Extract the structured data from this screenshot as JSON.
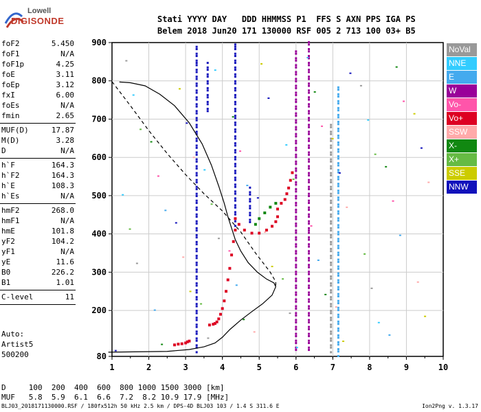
{
  "logo": {
    "top": "Lowell",
    "bottom": "DIGISONDE"
  },
  "header": {
    "line1": "Stati YYYY DAY   DDD HHMMSS P1  FFS S AXN PPS IGA PS",
    "line2": "Belem 2018 Jun20 171 130000 RSF 005 2 713 100 03+ B5"
  },
  "params": {
    "group1": [
      {
        "label": "foF2",
        "value": "5.450"
      },
      {
        "label": "foF1",
        "value": "N/A"
      },
      {
        "label": "foF1p",
        "value": "4.25"
      },
      {
        "label": "foE",
        "value": "3.11"
      },
      {
        "label": "foEp",
        "value": "3.12"
      },
      {
        "label": "fxI",
        "value": "6.00"
      },
      {
        "label": "foEs",
        "value": "N/A"
      },
      {
        "label": "fmin",
        "value": "2.65"
      }
    ],
    "group2": [
      {
        "label": "MUF(D)",
        "value": "17.87"
      },
      {
        "label": "M(D)",
        "value": "3.28"
      },
      {
        "label": "D",
        "value": "N/A"
      }
    ],
    "group3": [
      {
        "label": "h`F",
        "value": "164.3"
      },
      {
        "label": "h`F2",
        "value": "164.3"
      },
      {
        "label": "h`E",
        "value": "108.3"
      },
      {
        "label": "h`Es",
        "value": "N/A"
      }
    ],
    "group4": [
      {
        "label": "hmF2",
        "value": "268.0"
      },
      {
        "label": "hmF1",
        "value": "N/A"
      },
      {
        "label": "hmE",
        "value": "101.8"
      },
      {
        "label": "yF2",
        "value": "104.2"
      },
      {
        "label": "yF1",
        "value": "N/A"
      },
      {
        "label": "yE",
        "value": "11.6"
      },
      {
        "label": "B0",
        "value": "226.2"
      },
      {
        "label": "B1",
        "value": "1.01"
      }
    ],
    "group5": [
      {
        "label": "C-level",
        "value": "11"
      }
    ]
  },
  "autoscale": {
    "line1": "Auto:",
    "line2": "Artist5",
    "line3": "500200"
  },
  "muf_table": {
    "line1": "D     100  200  400  600  800 1000 1500 3000 [km]",
    "line2": "MUF   5.8  5.9  6.1  6.6  7.2  8.2 10.9 17.9 [MHz]"
  },
  "footer": {
    "left": "BLJ03_2018171130000.RSF / 180fx512h 50 kHz 2.5 km / DPS-4D BLJ03 103 / 1.4 S 311.6 E",
    "right": "Ion2Png v. 1.3.17"
  },
  "legend": [
    {
      "label": "NoVal",
      "color": "#999999"
    },
    {
      "label": "NNE",
      "color": "#33ccff"
    },
    {
      "label": "E",
      "color": "#44aaee"
    },
    {
      "label": "W",
      "color": "#990099"
    },
    {
      "label": "Vo-",
      "color": "#ff55aa"
    },
    {
      "label": "Vo+",
      "color": "#dd0022"
    },
    {
      "label": "SSW",
      "color": "#ffaaaa"
    },
    {
      "label": "X-",
      "color": "#118811"
    },
    {
      "label": "X+",
      "color": "#66bb44"
    },
    {
      "label": "SSE",
      "color": "#cccc00"
    },
    {
      "label": "NNW",
      "color": "#1111bb"
    }
  ],
  "chart_data": {
    "type": "scatter",
    "xlabel": "",
    "ylabel": "",
    "xlim": [
      1,
      10
    ],
    "ylim": [
      80,
      900
    ],
    "xticks": [
      1,
      2,
      3,
      4,
      5,
      6,
      7,
      8,
      9,
      10
    ],
    "yticks": [
      80,
      200,
      300,
      400,
      500,
      600,
      700,
      800,
      900
    ],
    "grid": true,
    "profile_solid": [
      [
        0.9,
        91
      ],
      [
        2.5,
        93
      ],
      [
        3.1,
        98
      ],
      [
        3.5,
        105
      ],
      [
        3.8,
        115
      ],
      [
        4.0,
        130
      ],
      [
        4.2,
        150
      ],
      [
        4.5,
        175
      ],
      [
        4.8,
        197
      ],
      [
        5.1,
        218
      ],
      [
        5.35,
        240
      ],
      [
        5.45,
        262
      ],
      [
        5.4,
        272
      ],
      [
        5.2,
        282
      ],
      [
        4.95,
        300
      ],
      [
        4.7,
        325
      ],
      [
        4.5,
        355
      ],
      [
        4.35,
        385
      ],
      [
        4.25,
        415
      ],
      [
        4.15,
        445
      ],
      [
        4.05,
        480
      ],
      [
        3.9,
        525
      ],
      [
        3.7,
        580
      ],
      [
        3.45,
        635
      ],
      [
        3.1,
        690
      ],
      [
        2.7,
        735
      ],
      [
        2.3,
        765
      ],
      [
        1.9,
        787
      ],
      [
        1.5,
        795
      ],
      [
        1.2,
        797
      ]
    ],
    "profile_dashed": [
      [
        1.0,
        798
      ],
      [
        1.5,
        735
      ],
      [
        2.0,
        670
      ],
      [
        2.5,
        610
      ],
      [
        3.0,
        555
      ],
      [
        3.5,
        505
      ],
      [
        4.0,
        460
      ],
      [
        4.5,
        405
      ],
      [
        4.9,
        350
      ],
      [
        5.3,
        300
      ],
      [
        5.45,
        275
      ],
      [
        5.45,
        262
      ]
    ],
    "trace_extraordinary_low": [
      [
        3.65,
        162
      ],
      [
        3.75,
        164
      ],
      [
        3.8,
        166
      ],
      [
        3.85,
        170
      ],
      [
        3.9,
        178
      ],
      [
        3.95,
        190
      ],
      [
        4.0,
        205
      ],
      [
        4.05,
        225
      ],
      [
        4.1,
        250
      ],
      [
        4.15,
        280
      ],
      [
        4.2,
        310
      ],
      [
        4.25,
        345
      ],
      [
        4.3,
        380
      ],
      [
        4.35,
        410
      ]
    ],
    "trace_o_lower": [
      [
        2.7,
        110
      ],
      [
        2.8,
        112
      ],
      [
        2.9,
        113
      ],
      [
        3.0,
        115
      ],
      [
        3.05,
        118
      ],
      [
        3.1,
        120
      ]
    ],
    "trace_o_F": [
      [
        4.35,
        440
      ],
      [
        4.45,
        425
      ],
      [
        4.6,
        410
      ],
      [
        4.8,
        402
      ],
      [
        5.0,
        402
      ],
      [
        5.2,
        410
      ],
      [
        5.35,
        420
      ],
      [
        5.45,
        432
      ],
      [
        5.5,
        445
      ]
    ],
    "trace_o_high": [
      [
        5.5,
        465
      ],
      [
        5.6,
        480
      ],
      [
        5.7,
        490
      ],
      [
        5.75,
        505
      ],
      [
        5.8,
        520
      ],
      [
        5.85,
        540
      ],
      [
        5.9,
        560
      ]
    ],
    "trace_x_F": [
      [
        4.9,
        425
      ],
      [
        5.0,
        440
      ],
      [
        5.15,
        455
      ],
      [
        5.3,
        470
      ],
      [
        5.45,
        480
      ]
    ],
    "vertical_bands": [
      {
        "x": 3.3,
        "ymin": 90,
        "ymax": 890,
        "series": "NNW"
      },
      {
        "x": 3.6,
        "ymin": 720,
        "ymax": 850,
        "series": "NNW"
      },
      {
        "x": 4.35,
        "ymin": 420,
        "ymax": 900,
        "series": "NNW"
      },
      {
        "x": 4.75,
        "ymin": 430,
        "ymax": 520,
        "series": "NNW"
      },
      {
        "x": 6.0,
        "ymin": 90,
        "ymax": 880,
        "series": "W"
      },
      {
        "x": 6.35,
        "ymin": 90,
        "ymax": 900,
        "series": "W"
      },
      {
        "x": 6.95,
        "ymin": 90,
        "ymax": 690,
        "series": "NoVal"
      },
      {
        "x": 7.15,
        "ymin": 80,
        "ymax": 785,
        "series": "E"
      }
    ]
  }
}
